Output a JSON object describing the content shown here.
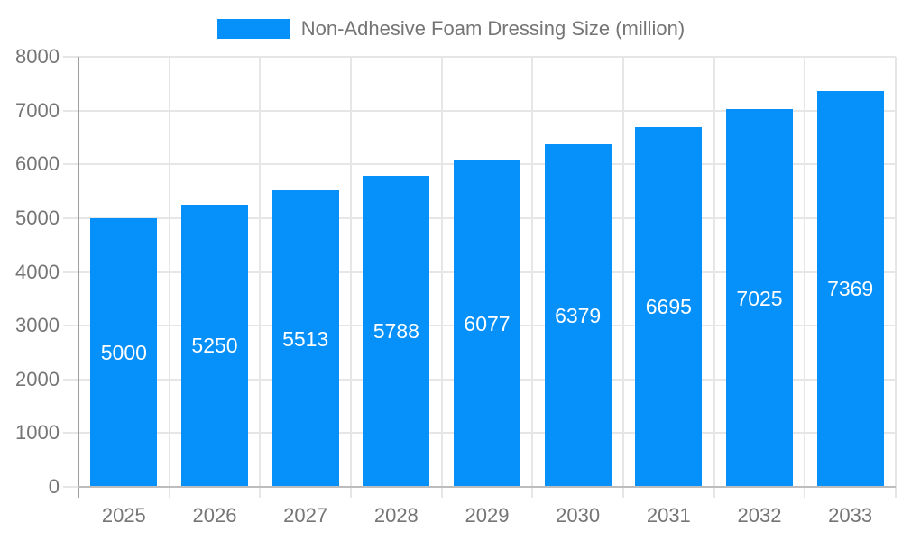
{
  "legend": {
    "label": "Non-Adhesive Foam Dressing Size (million)"
  },
  "chart_data": {
    "type": "bar",
    "title": "Non-Adhesive Foam Dressing Size (million)",
    "categories": [
      "2025",
      "2026",
      "2027",
      "2028",
      "2029",
      "2030",
      "2031",
      "2032",
      "2033"
    ],
    "values": [
      5000,
      5250,
      5513,
      5788,
      6077,
      6379,
      6695,
      7025,
      7369
    ],
    "bar_labels": [
      "5000",
      "5250",
      "5513",
      "5788",
      "6077",
      "6379",
      "6695",
      "7025",
      "7369"
    ],
    "yticks": [
      0,
      1000,
      2000,
      3000,
      4000,
      5000,
      6000,
      7000,
      8000
    ],
    "ylim": [
      0,
      8000
    ],
    "xlabel": "",
    "ylabel": "",
    "grid": true,
    "legend_position": "top",
    "bar_label_position": "inside-center"
  },
  "colors": {
    "bar": "#0690f9",
    "grid": "#e6e6e6",
    "y_axis": "#9e9e9e",
    "baseline": "#bdbdbd",
    "text": "#757575",
    "bar_label": "#ffffff",
    "background": "#ffffff"
  }
}
